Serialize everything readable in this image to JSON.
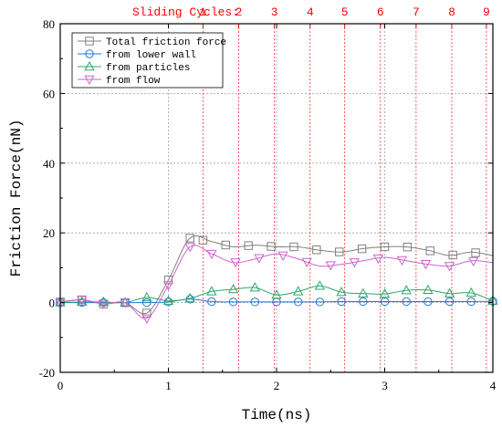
{
  "chart_data": {
    "type": "line",
    "xlabel": "Time(ns)",
    "ylabel": "Friction Force(nN)",
    "xlim": [
      0,
      4
    ],
    "ylim": [
      -20,
      80
    ],
    "xticks": [
      0,
      1,
      2,
      3,
      4
    ],
    "yticks": [
      -20,
      0,
      20,
      40,
      60,
      80
    ],
    "grid": true,
    "legend_position": "top-left",
    "sliding_cycles": {
      "label": "Sliding Cycles:",
      "ticks": [
        {
          "label": "1",
          "x": 1.32
        },
        {
          "label": "2",
          "x": 1.65
        },
        {
          "label": "3",
          "x": 1.98
        },
        {
          "label": "4",
          "x": 2.31
        },
        {
          "label": "5",
          "x": 2.63
        },
        {
          "label": "6",
          "x": 2.96
        },
        {
          "label": "7",
          "x": 3.29
        },
        {
          "label": "8",
          "x": 3.62
        },
        {
          "label": "9",
          "x": 3.94
        }
      ]
    },
    "series": [
      {
        "name": "Total friction force",
        "color": "#808080",
        "marker": "square",
        "x": [
          0,
          0.2,
          0.4,
          0.6,
          0.8,
          1.0,
          1.2,
          1.4,
          1.6,
          1.8,
          2.0,
          2.2,
          2.4,
          2.6,
          2.8,
          3.0,
          3.2,
          3.4,
          3.6,
          3.8,
          4.0
        ],
        "y": [
          0.2,
          0.8,
          -0.4,
          0.0,
          -3.0,
          6.5,
          18.5,
          17.5,
          16.0,
          16.5,
          16.0,
          16.0,
          15.0,
          14.5,
          15.5,
          16.0,
          16.0,
          15.0,
          13.5,
          14.5,
          13.5
        ],
        "marker_x": [
          0,
          0.2,
          0.4,
          0.6,
          0.8,
          1.0,
          1.2,
          1.32,
          1.53,
          1.74,
          1.95,
          2.16,
          2.37,
          2.58,
          2.79,
          3.0,
          3.21,
          3.42,
          3.63,
          3.84
        ]
      },
      {
        "name": "from lower wall",
        "color": "#1f77e0",
        "marker": "circle",
        "x": [
          0,
          0.2,
          0.4,
          0.6,
          0.8,
          1.0,
          1.2,
          1.4,
          1.6,
          1.8,
          2.0,
          2.2,
          2.4,
          2.6,
          2.8,
          3.0,
          3.2,
          3.4,
          3.6,
          3.8,
          4.0
        ],
        "y": [
          0.0,
          0.0,
          0.0,
          0.0,
          0.0,
          0.2,
          1.0,
          0.3,
          0.2,
          0.2,
          0.2,
          0.2,
          0.2,
          0.3,
          0.3,
          0.3,
          0.3,
          0.3,
          0.3,
          0.3,
          0.4
        ],
        "marker_x": [
          0,
          0.2,
          0.4,
          0.6,
          0.8,
          1.0,
          1.2,
          1.4,
          1.6,
          1.8,
          2.0,
          2.2,
          2.4,
          2.6,
          2.8,
          3.0,
          3.2,
          3.4,
          3.6,
          3.8,
          4.0
        ]
      },
      {
        "name": "from particles",
        "color": "#2ca868",
        "marker": "triangle-up",
        "x": [
          0,
          0.2,
          0.4,
          0.6,
          0.8,
          1.0,
          1.2,
          1.4,
          1.6,
          1.8,
          2.0,
          2.2,
          2.4,
          2.6,
          2.8,
          3.0,
          3.2,
          3.4,
          3.6,
          3.8,
          4.0
        ],
        "y": [
          0.0,
          0.2,
          0.2,
          0.0,
          1.5,
          0.5,
          1.2,
          3.2,
          3.8,
          4.3,
          2.2,
          3.2,
          4.8,
          3.0,
          2.6,
          2.5,
          3.5,
          3.6,
          2.6,
          2.8,
          0.5
        ],
        "marker_x": [
          0,
          0.2,
          0.4,
          0.6,
          0.8,
          1.0,
          1.2,
          1.4,
          1.6,
          1.8,
          2.0,
          2.2,
          2.4,
          2.6,
          2.8,
          3.0,
          3.2,
          3.4,
          3.6,
          3.8,
          4.0
        ]
      },
      {
        "name": "from flow",
        "color": "#cc66cc",
        "marker": "triangle-down",
        "x": [
          0,
          0.2,
          0.4,
          0.6,
          0.8,
          1.0,
          1.2,
          1.4,
          1.6,
          1.8,
          2.0,
          2.2,
          2.4,
          2.6,
          2.8,
          3.0,
          3.2,
          3.4,
          3.6,
          3.8,
          4.0
        ],
        "y": [
          0.0,
          0.8,
          -0.3,
          0.0,
          -4.5,
          5.0,
          16.0,
          14.0,
          11.5,
          12.5,
          14.0,
          12.5,
          10.5,
          11.0,
          12.0,
          13.0,
          12.0,
          11.0,
          10.5,
          12.0,
          11.5
        ],
        "marker_x": [
          0,
          0.2,
          0.4,
          0.6,
          0.8,
          1.0,
          1.2,
          1.4,
          1.62,
          1.84,
          2.06,
          2.28,
          2.5,
          2.72,
          2.94,
          3.16,
          3.38,
          3.6,
          3.82
        ]
      }
    ]
  }
}
